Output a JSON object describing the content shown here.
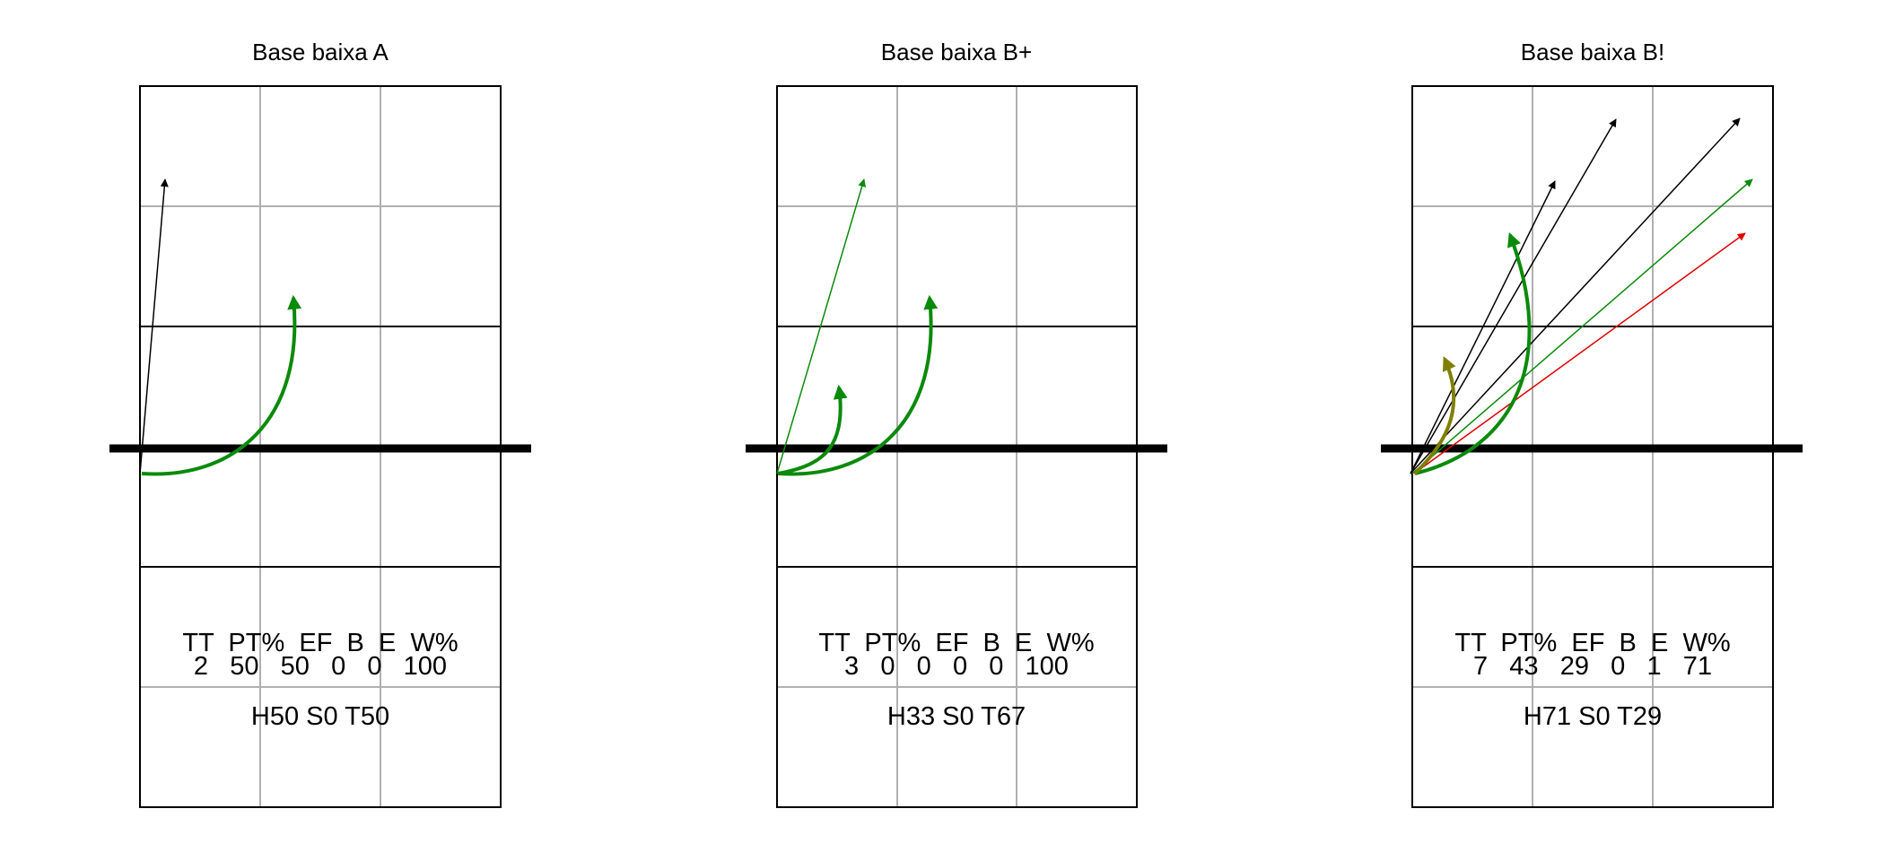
{
  "panels": [
    {
      "title": "Base baixa A",
      "stats_header": "TT  PT%  EF  B  E  W%",
      "stats_values": "2   50   50   0   0   100",
      "hst": "H50 S0 T50",
      "attacks": [
        {
          "kind": "straight",
          "color": "#000000"
        },
        {
          "kind": "curve",
          "color": "#0a8a0a"
        }
      ]
    },
    {
      "title": "Base baixa B+",
      "stats_header": "TT  PT%  EF  B  E  W%",
      "stats_values": "3   0   0   0   0   100",
      "hst": "H33 S0 T67",
      "attacks": [
        {
          "kind": "straight",
          "color": "#0a8a0a"
        },
        {
          "kind": "curve",
          "color": "#0a8a0a"
        },
        {
          "kind": "curve",
          "color": "#0a8a0a"
        }
      ]
    },
    {
      "title": "Base baixa B!",
      "stats_header": "TT  PT%  EF  B  E  W%",
      "stats_values": "7   43   29   0   1   71",
      "hst": "H71 S0 T29",
      "attacks": [
        {
          "kind": "straight",
          "color": "#000000"
        },
        {
          "kind": "straight",
          "color": "#000000"
        },
        {
          "kind": "straight",
          "color": "#000000"
        },
        {
          "kind": "straight",
          "color": "#0a8a0a"
        },
        {
          "kind": "straight",
          "color": "#e00000"
        },
        {
          "kind": "curve",
          "color": "#0a8a0a"
        },
        {
          "kind": "curve",
          "color": "#7f7f00"
        }
      ]
    }
  ]
}
